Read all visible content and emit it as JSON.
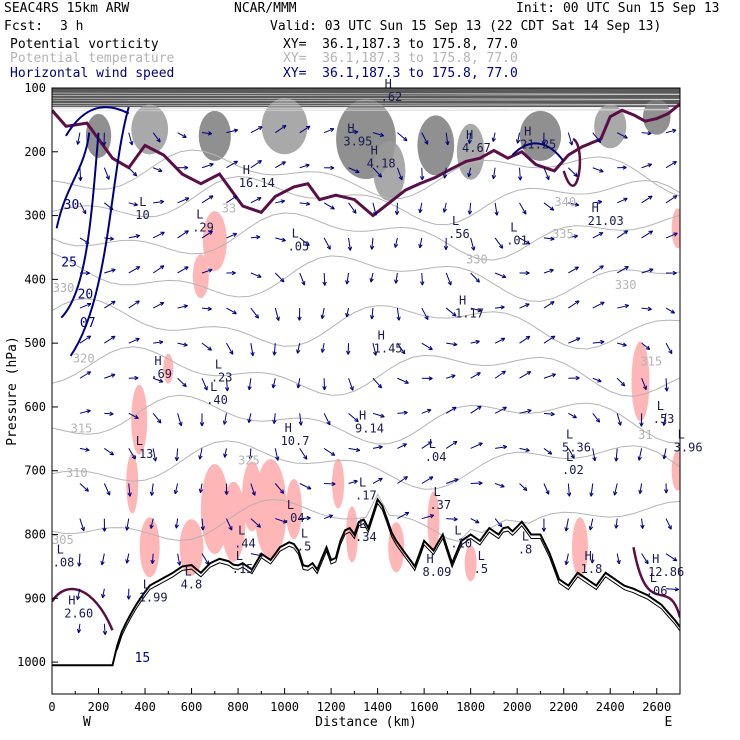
{
  "header": {
    "model": "SEAC4RS 15km ARW",
    "org": "NCAR/MMM",
    "init": "Init: 00 UTC Sun 15 Sep 13",
    "fcst_label": "Fcst:",
    "fcst_value": "3 h",
    "valid": "Valid: 03 UTC Sun 15 Sep 13 (22 CDT Sat 14 Sep 13)"
  },
  "fields": [
    {
      "name": "Potential vorticity",
      "xy": "XY=  36.1,187.3 to 175.8, 77.0",
      "color": "#000000"
    },
    {
      "name": "Potential temperature",
      "xy": "XY=  36.1,187.3 to 175.8, 77.0",
      "color": "#b4b4b4"
    },
    {
      "name": "Horizontal wind speed",
      "xy": "XY=  36.1,187.3 to 175.8, 77.0",
      "color": "#000080"
    }
  ],
  "chart_data": {
    "type": "cross-section",
    "xlabel": "Distance (km)",
    "ylabel": "Pressure (hPa)",
    "xlim": [
      0,
      2700
    ],
    "ylim": [
      1050,
      100
    ],
    "x_ticks": [
      0,
      200,
      400,
      600,
      800,
      1000,
      1200,
      1400,
      1600,
      1800,
      2000,
      2200,
      2400,
      2600
    ],
    "y_ticks": [
      100,
      200,
      300,
      400,
      500,
      600,
      700,
      800,
      900,
      1000
    ],
    "endpoints": {
      "left": "W",
      "right": "E"
    },
    "colors": {
      "pv_shade": "#707070",
      "pink": "#ffb6b6",
      "wind": "#000080",
      "theta": "#b4b4b4",
      "tropopause": "#5a1046",
      "terrain": "#000000"
    },
    "theta_labels": [
      {
        "text": "305",
        "x": 0,
        "p": 815
      },
      {
        "text": "310",
        "x": 60,
        "p": 710
      },
      {
        "text": "315",
        "x": 80,
        "p": 640
      },
      {
        "text": "320",
        "x": 90,
        "p": 530
      },
      {
        "text": "330",
        "x": 3,
        "p": 420
      },
      {
        "text": "335",
        "x": 2150,
        "p": 335
      },
      {
        "text": "330",
        "x": 1780,
        "p": 375
      },
      {
        "text": "330",
        "x": 2420,
        "p": 415
      },
      {
        "text": "340",
        "x": 2160,
        "p": 285
      },
      {
        "text": "315",
        "x": 2530,
        "p": 535
      },
      {
        "text": "325",
        "x": 800,
        "p": 690
      },
      {
        "text": "31",
        "x": 2520,
        "p": 650
      },
      {
        "text": "33",
        "x": 730,
        "p": 295
      }
    ],
    "wind_labels": [
      {
        "text": "30",
        "x": 50,
        "p": 290
      },
      {
        "text": "25",
        "x": 40,
        "p": 380
      },
      {
        "text": "20",
        "x": 110,
        "p": 430
      },
      {
        "text": "07",
        "x": 120,
        "p": 475
      },
      {
        "text": "15",
        "x": 355,
        "p": 1000
      }
    ],
    "extrema": [
      {
        "type": "H",
        "value": ".62",
        "x": 1430,
        "p": 120
      },
      {
        "type": "H",
        "value": "3.95",
        "x": 1270,
        "p": 190
      },
      {
        "type": "H",
        "value": "4.18",
        "x": 1370,
        "p": 225
      },
      {
        "type": "H",
        "value": "4.67",
        "x": 1780,
        "p": 200
      },
      {
        "type": "H",
        "value": "21.25",
        "x": 2030,
        "p": 195
      },
      {
        "type": "H",
        "value": "16.14",
        "x": 820,
        "p": 255
      },
      {
        "type": "L",
        "value": "10",
        "x": 375,
        "p": 305
      },
      {
        "type": "L",
        "value": ".29",
        "x": 620,
        "p": 325
      },
      {
        "type": "L",
        "value": ".05",
        "x": 1030,
        "p": 355
      },
      {
        "type": "L",
        "value": ".56",
        "x": 1720,
        "p": 335
      },
      {
        "type": "L",
        "value": ".01",
        "x": 1970,
        "p": 345
      },
      {
        "type": "H",
        "value": "21.03",
        "x": 2320,
        "p": 315
      },
      {
        "type": "H",
        "value": "1.17",
        "x": 1750,
        "p": 460
      },
      {
        "type": "H",
        "value": "1.45",
        "x": 1400,
        "p": 515
      },
      {
        "type": "H",
        "value": ".69",
        "x": 440,
        "p": 555
      },
      {
        "type": "L",
        "value": ".23",
        "x": 700,
        "p": 560
      },
      {
        "type": "L",
        "value": ".40",
        "x": 680,
        "p": 595
      },
      {
        "type": "H",
        "value": "9.14",
        "x": 1320,
        "p": 640
      },
      {
        "type": "H",
        "value": "10.7",
        "x": 1000,
        "p": 660
      },
      {
        "type": "L",
        "value": ".13",
        "x": 360,
        "p": 680
      },
      {
        "type": "L",
        "value": ".04",
        "x": 1620,
        "p": 685
      },
      {
        "type": "L",
        "value": "5.36",
        "x": 2210,
        "p": 670
      },
      {
        "type": "L",
        "value": ".02",
        "x": 2210,
        "p": 705
      },
      {
        "type": "L",
        "value": ".53",
        "x": 2600,
        "p": 625
      },
      {
        "type": "L",
        "value": "3.96",
        "x": 2690,
        "p": 670
      },
      {
        "type": "L",
        "value": ".17",
        "x": 1320,
        "p": 745
      },
      {
        "type": "L",
        "value": ".37",
        "x": 1640,
        "p": 760
      },
      {
        "type": "L",
        "value": ".04",
        "x": 1010,
        "p": 780
      },
      {
        "type": "L",
        "value": ".44",
        "x": 800,
        "p": 820
      },
      {
        "type": "L",
        "value": ".34",
        "x": 1320,
        "p": 810
      },
      {
        "type": "L",
        "value": ".10",
        "x": 1730,
        "p": 820
      },
      {
        "type": "H",
        "value": "8.09",
        "x": 1610,
        "p": 865
      },
      {
        "type": "L",
        "value": ".15",
        "x": 790,
        "p": 860
      },
      {
        "type": "H",
        "value": "12.86",
        "x": 2580,
        "p": 865
      },
      {
        "type": "L",
        "value": ".06",
        "x": 2570,
        "p": 895
      },
      {
        "type": "L",
        "value": "1.99",
        "x": 390,
        "p": 905
      },
      {
        "type": "L",
        "value": "4.8",
        "x": 570,
        "p": 885
      },
      {
        "type": "H",
        "value": "2.60",
        "x": 70,
        "p": 930
      },
      {
        "type": "H",
        "value": "1.8",
        "x": 2290,
        "p": 860
      },
      {
        "type": "L",
        "value": ".08",
        "x": 20,
        "p": 850
      },
      {
        "type": "L",
        "value": ".5",
        "x": 1830,
        "p": 860
      },
      {
        "type": "L",
        "value": ".5",
        "x": 1070,
        "p": 825
      },
      {
        "type": "L",
        "value": ".8",
        "x": 2020,
        "p": 830
      }
    ],
    "grid": false
  }
}
